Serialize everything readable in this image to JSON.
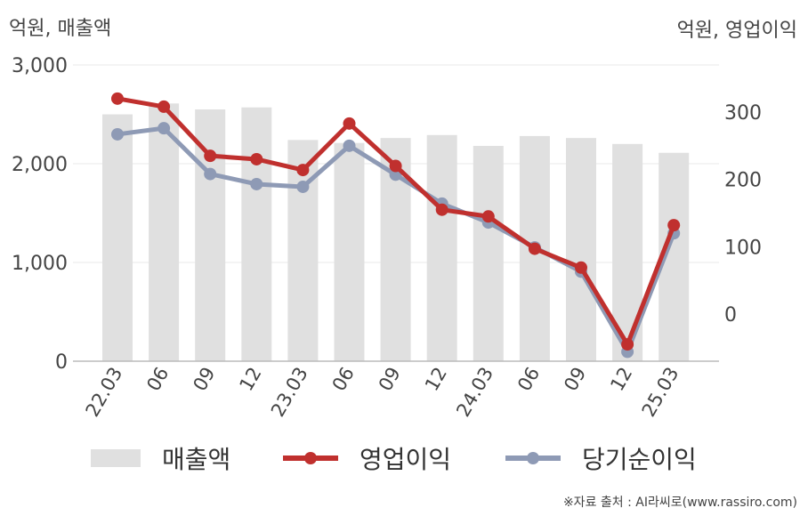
{
  "chart_data": {
    "type": "bar",
    "categories": [
      "22.03",
      "06",
      "09",
      "12",
      "23.03",
      "06",
      "09",
      "12",
      "24.03",
      "06",
      "09",
      "12",
      "25.03"
    ],
    "left_axis": {
      "label": "억원, 매출액",
      "ylim": [
        0,
        3000
      ],
      "ticks": [
        "0",
        "1,000",
        "2,000",
        "3,000"
      ],
      "tick_values": [
        0,
        1000,
        2000,
        3000
      ]
    },
    "right_axis": {
      "label": "억원, 영업이익",
      "ylim": [
        -70,
        370
      ],
      "ticks": [
        "0",
        "100",
        "200",
        "300"
      ],
      "tick_values": [
        0,
        100,
        200,
        300
      ]
    },
    "series": [
      {
        "name": "매출액",
        "type": "bar",
        "axis": "left",
        "color": "#e0e0e0",
        "values": [
          2500,
          2610,
          2550,
          2570,
          2240,
          2210,
          2260,
          2290,
          2180,
          2280,
          2260,
          2200,
          2110
        ]
      },
      {
        "name": "영업이익",
        "type": "line",
        "axis": "right",
        "color": "#c0302e",
        "values": [
          320,
          308,
          235,
          230,
          214,
          283,
          220,
          155,
          145,
          97,
          69,
          -45,
          132
        ]
      },
      {
        "name": "당기순이익",
        "type": "line",
        "axis": "right",
        "color": "#8e9ab5",
        "values": [
          267,
          276,
          208,
          193,
          189,
          250,
          207,
          164,
          136,
          99,
          63,
          -56,
          120
        ]
      }
    ],
    "grid": true,
    "legend_position": "bottom"
  },
  "source": "※자료 출처 : AI라씨로(www.rassiro.com)"
}
